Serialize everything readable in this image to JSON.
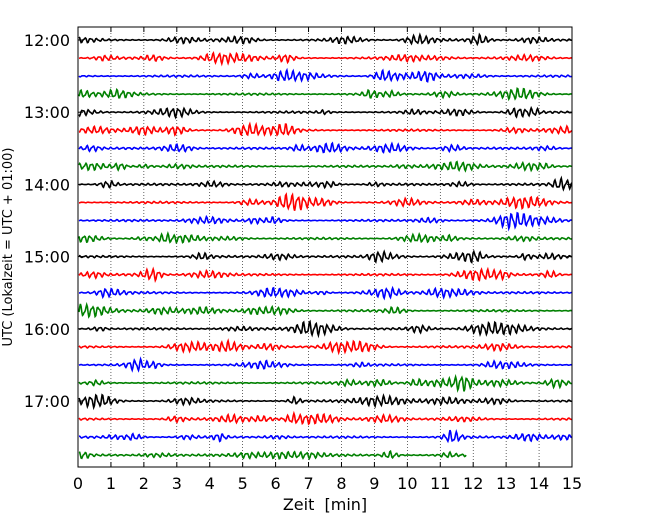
{
  "chart_data": {
    "type": "line",
    "title": "",
    "xlabel": "Zeit  [min]",
    "ylabel": "UTC (Lokalzeit = UTC + 01:00)",
    "xlim": [
      0,
      15
    ],
    "x_ticks": [
      0,
      1,
      2,
      3,
      4,
      5,
      6,
      7,
      8,
      9,
      10,
      11,
      12,
      13,
      14,
      15
    ],
    "y_tick_labels": [
      "12:00",
      "13:00",
      "14:00",
      "15:00",
      "16:00",
      "17:00"
    ],
    "grid": "vertical dotted lines at each minute",
    "trace_interval_min": 15,
    "start_time": "12:00",
    "color_cycle": [
      "#000000",
      "#ff0000",
      "#0000ff",
      "#008000"
    ],
    "series": [
      {
        "start": "12:00",
        "end_min": 15
      },
      {
        "start": "12:15",
        "end_min": 15
      },
      {
        "start": "12:30",
        "end_min": 15
      },
      {
        "start": "12:45",
        "end_min": 15
      },
      {
        "start": "13:00",
        "end_min": 15
      },
      {
        "start": "13:15",
        "end_min": 15
      },
      {
        "start": "13:30",
        "end_min": 15
      },
      {
        "start": "13:45",
        "end_min": 15
      },
      {
        "start": "14:00",
        "end_min": 15
      },
      {
        "start": "14:15",
        "end_min": 15
      },
      {
        "start": "14:30",
        "end_min": 15
      },
      {
        "start": "14:45",
        "end_min": 15
      },
      {
        "start": "15:00",
        "end_min": 15
      },
      {
        "start": "15:15",
        "end_min": 15
      },
      {
        "start": "15:30",
        "end_min": 15
      },
      {
        "start": "15:45",
        "end_min": 15
      },
      {
        "start": "16:00",
        "end_min": 15
      },
      {
        "start": "16:15",
        "end_min": 15
      },
      {
        "start": "16:30",
        "end_min": 15
      },
      {
        "start": "16:45",
        "end_min": 15
      },
      {
        "start": "17:00",
        "end_min": 15
      },
      {
        "start": "17:15",
        "end_min": 15
      },
      {
        "start": "17:30",
        "end_min": 15
      },
      {
        "start": "17:45",
        "end_min": 11.8
      }
    ]
  }
}
